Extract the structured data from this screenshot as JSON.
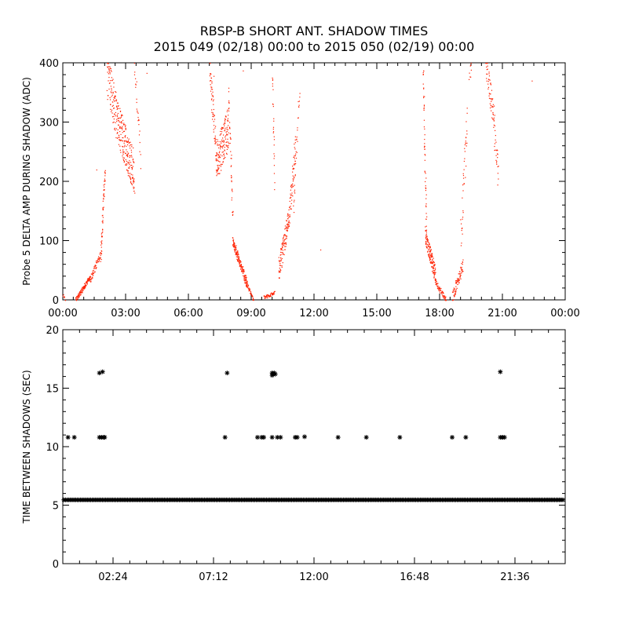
{
  "title": {
    "line1": "RBSP-B SHORT ANT. SHADOW TIMES",
    "line2": "2015 049 (02/18) 00:00 to 2015 050 (02/19) 00:00"
  },
  "colors": {
    "amp": "#ff2000",
    "interval": "#000000",
    "axis": "#000000"
  },
  "chart_data": [
    {
      "type": "scatter",
      "ylabel": "Probe 5 DELTA AMP DURING SHADOW (ADC)",
      "xlim_hours": [
        0,
        24
      ],
      "ylim": [
        0,
        400
      ],
      "x_tick_labels": [
        "00:00",
        "03:00",
        "06:00",
        "09:00",
        "12:00",
        "15:00",
        "18:00",
        "21:00",
        "00:00"
      ],
      "x_tick_hours": [
        0,
        3,
        6,
        9,
        12,
        15,
        18,
        21,
        24
      ],
      "y_tick_labels": [
        "0",
        "100",
        "200",
        "300",
        "400"
      ],
      "y_ticks": [
        0,
        100,
        200,
        300,
        400
      ],
      "series": [
        {
          "point_style": "dot",
          "segments": [
            {
              "from": [
                0.0,
                10
              ],
              "to": [
                0.1,
                0
              ],
              "n": 8,
              "jitter": 3
            },
            {
              "from": [
                0.6,
                0
              ],
              "to": [
                1.3,
                40
              ],
              "n": 120,
              "jitter": 4
            },
            {
              "from": [
                1.3,
                35
              ],
              "to": [
                1.8,
                80
              ],
              "n": 60,
              "jitter": 6
            },
            {
              "from": [
                1.8,
                80
              ],
              "to": [
                2.0,
                225
              ],
              "n": 60,
              "jitter": 15
            },
            {
              "from": [
                2.1,
                380
              ],
              "to": [
                2.6,
                300
              ],
              "n": 100,
              "jitter": 40
            },
            {
              "from": [
                2.6,
                300
              ],
              "to": [
                3.4,
                215
              ],
              "n": 200,
              "jitter": 35
            },
            {
              "from": [
                3.4,
                400
              ],
              "to": [
                3.7,
                250
              ],
              "n": 25,
              "jitter": 30
            },
            {
              "from": [
                7.0,
                390
              ],
              "to": [
                7.3,
                260
              ],
              "n": 60,
              "jitter": 25
            },
            {
              "from": [
                7.3,
                230
              ],
              "to": [
                7.9,
                290
              ],
              "n": 150,
              "jitter": 35
            },
            {
              "from": [
                7.9,
                350
              ],
              "to": [
                8.1,
                140
              ],
              "n": 40,
              "jitter": 20
            },
            {
              "from": [
                8.1,
                100
              ],
              "to": [
                8.8,
                25
              ],
              "n": 180,
              "jitter": 8
            },
            {
              "from": [
                8.8,
                25
              ],
              "to": [
                9.1,
                0
              ],
              "n": 30,
              "jitter": 3
            },
            {
              "from": [
                9.6,
                5
              ],
              "to": [
                10.1,
                12
              ],
              "n": 50,
              "jitter": 3
            },
            {
              "from": [
                10.0,
                380
              ],
              "to": [
                10.1,
                200
              ],
              "n": 25,
              "jitter": 20
            },
            {
              "from": [
                10.3,
                50
              ],
              "to": [
                10.8,
                140
              ],
              "n": 120,
              "jitter": 20
            },
            {
              "from": [
                10.8,
                140
              ],
              "to": [
                11.1,
                260
              ],
              "n": 60,
              "jitter": 25
            },
            {
              "from": [
                11.0,
                150
              ],
              "to": [
                11.3,
                360
              ],
              "n": 30,
              "jitter": 20
            },
            {
              "from": [
                17.2,
                390
              ],
              "to": [
                17.35,
                130
              ],
              "n": 50,
              "jitter": 20
            },
            {
              "from": [
                17.3,
                110
              ],
              "to": [
                17.8,
                40
              ],
              "n": 150,
              "jitter": 15
            },
            {
              "from": [
                17.8,
                30
              ],
              "to": [
                18.3,
                0
              ],
              "n": 60,
              "jitter": 5
            },
            {
              "from": [
                18.6,
                5
              ],
              "to": [
                19.1,
                60
              ],
              "n": 80,
              "jitter": 10
            },
            {
              "from": [
                19.0,
                110
              ],
              "to": [
                19.3,
                300
              ],
              "n": 40,
              "jitter": 40
            },
            {
              "from": [
                19.4,
                380
              ],
              "to": [
                19.5,
                400
              ],
              "n": 8,
              "jitter": 15
            },
            {
              "from": [
                20.2,
                400
              ],
              "to": [
                20.6,
                300
              ],
              "n": 60,
              "jitter": 25
            },
            {
              "from": [
                20.6,
                280
              ],
              "to": [
                20.8,
                210
              ],
              "n": 25,
              "jitter": 30
            }
          ],
          "singles": [
            [
              7.2,
              378
            ],
            [
              8.6,
              387
            ],
            [
              12.3,
              85
            ],
            [
              22.4,
              370
            ],
            [
              4.0,
              383
            ],
            [
              1.6,
              220
            ]
          ]
        }
      ]
    },
    {
      "type": "scatter",
      "ylabel": "TIME BETWEEN SHADOWS (SEC)",
      "xlim_hours": [
        0,
        24
      ],
      "ylim": [
        0,
        20
      ],
      "x_tick_labels": [
        "02:24",
        "07:12",
        "12:00",
        "16:48",
        "21:36"
      ],
      "x_tick_hours": [
        2.4,
        7.2,
        12.0,
        16.8,
        21.6
      ],
      "y_tick_labels": [
        "0",
        "5",
        "10",
        "15",
        "20"
      ],
      "y_ticks": [
        0,
        5,
        10,
        15,
        20
      ],
      "series": [
        {
          "point_style": "asterisk",
          "baseline": {
            "y": 5.45,
            "x_start": 0.05,
            "x_end": 23.95,
            "step": 0.08
          },
          "points": [
            [
              0.25,
              10.8
            ],
            [
              0.55,
              10.8
            ],
            [
              1.75,
              10.8
            ],
            [
              1.85,
              10.8
            ],
            [
              1.95,
              10.8
            ],
            [
              2.0,
              10.8
            ],
            [
              1.75,
              16.3
            ],
            [
              1.9,
              16.4
            ],
            [
              7.75,
              10.8
            ],
            [
              7.85,
              16.3
            ],
            [
              9.3,
              10.8
            ],
            [
              9.5,
              10.8
            ],
            [
              9.6,
              10.8
            ],
            [
              10.0,
              16.3
            ],
            [
              10.1,
              16.3
            ],
            [
              10.05,
              16.2
            ],
            [
              10.0,
              16.1
            ],
            [
              10.15,
              16.2
            ],
            [
              10.0,
              10.8
            ],
            [
              10.25,
              10.8
            ],
            [
              10.4,
              10.8
            ],
            [
              11.1,
              10.8
            ],
            [
              11.2,
              10.8
            ],
            [
              11.55,
              10.85
            ],
            [
              13.15,
              10.8
            ],
            [
              14.5,
              10.8
            ],
            [
              16.1,
              10.8
            ],
            [
              18.6,
              10.8
            ],
            [
              19.25,
              10.8
            ],
            [
              20.9,
              16.4
            ],
            [
              20.9,
              10.8
            ],
            [
              21.0,
              10.8
            ],
            [
              21.1,
              10.8
            ]
          ]
        }
      ]
    }
  ]
}
